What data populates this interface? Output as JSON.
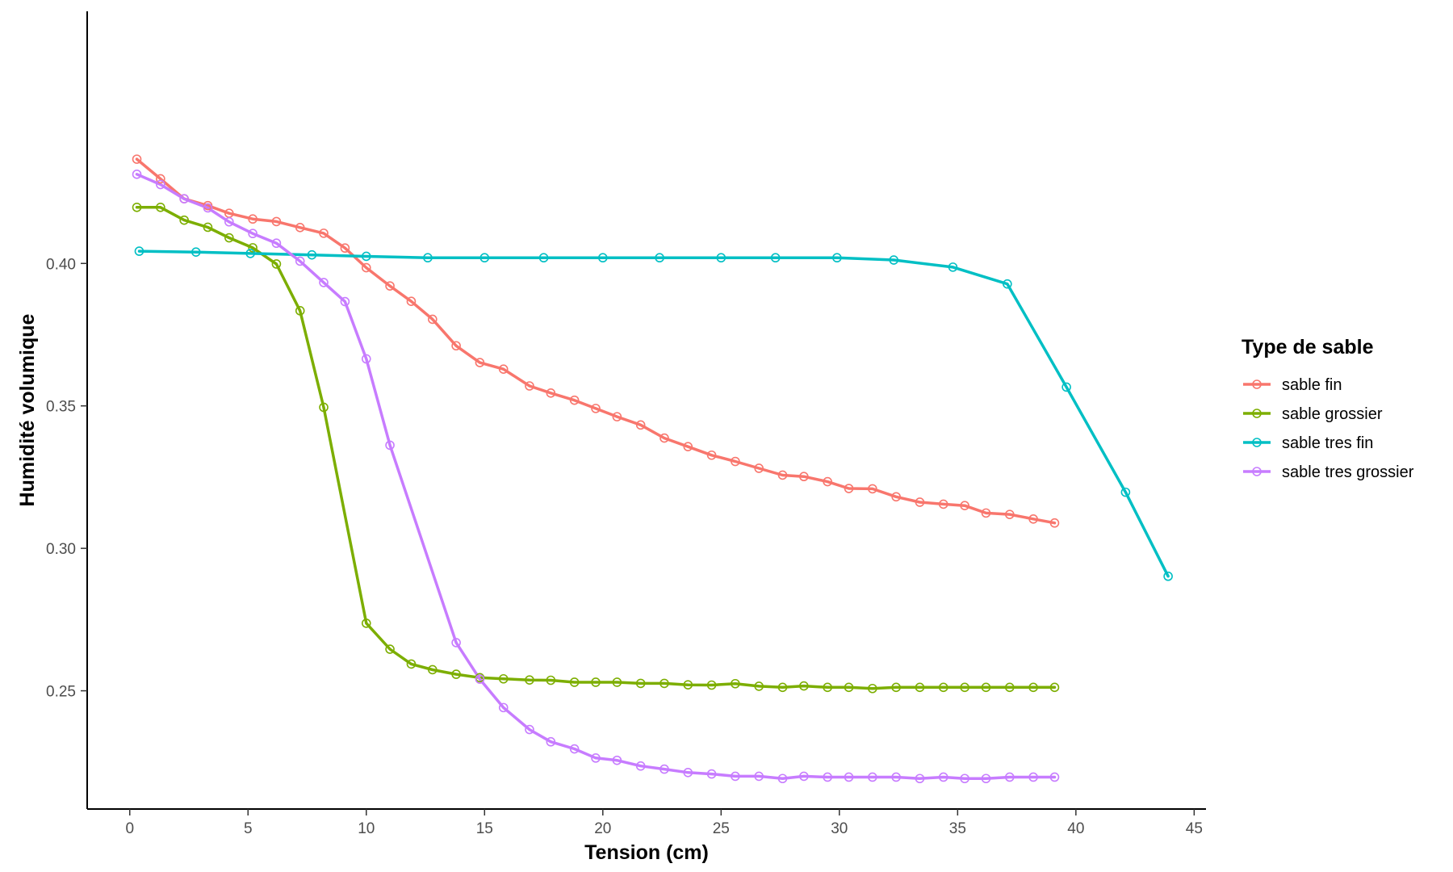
{
  "chart_data": {
    "type": "line",
    "title": "",
    "xlabel": "Tension (cm)",
    "ylabel": "Humidité volumique",
    "xlim": [
      -1.8,
      45.5
    ],
    "ylim": [
      0.2085,
      0.4885
    ],
    "x_ticks": [
      0,
      5,
      10,
      15,
      20,
      25,
      30,
      35,
      40,
      45
    ],
    "y_ticks": [
      0.25,
      0.3,
      0.35,
      0.4
    ],
    "x_tick_labels": [
      "0",
      "5",
      "10",
      "15",
      "20",
      "25",
      "30",
      "35",
      "40",
      "45"
    ],
    "y_tick_labels": [
      "0.25",
      "0.30",
      "0.35",
      "0.40"
    ],
    "grid": false,
    "legend": {
      "title": "Type de sable",
      "position": "right"
    },
    "series": [
      {
        "name": "sable fin",
        "color": "#F8766D",
        "x": [
          0.3,
          1.3,
          2.3,
          3.3,
          4.2,
          5.2,
          6.2,
          7.2,
          8.2,
          9.1,
          10.0,
          11.0,
          11.9,
          12.8,
          13.8,
          14.8,
          15.8,
          16.9,
          17.8,
          18.8,
          19.7,
          20.6,
          21.6,
          22.6,
          23.6,
          24.6,
          25.6,
          26.6,
          27.6,
          28.5,
          29.5,
          30.4,
          31.4,
          32.4,
          33.4,
          34.4,
          35.3,
          36.2,
          37.2,
          38.2,
          39.1
        ],
        "y": [
          0.4366,
          0.4297,
          0.4227,
          0.4203,
          0.4176,
          0.4156,
          0.4147,
          0.4126,
          0.4106,
          0.4054,
          0.3985,
          0.3921,
          0.3867,
          0.3804,
          0.3711,
          0.3652,
          0.3629,
          0.357,
          0.3545,
          0.352,
          0.3491,
          0.3462,
          0.3433,
          0.3387,
          0.3357,
          0.3327,
          0.3305,
          0.3281,
          0.3257,
          0.3252,
          0.3234,
          0.321,
          0.3209,
          0.3181,
          0.3162,
          0.3155,
          0.315,
          0.3124,
          0.3119,
          0.3103,
          0.3089
        ]
      },
      {
        "name": "sable grossier",
        "color": "#7CAE00",
        "x": [
          0.3,
          1.3,
          2.3,
          3.3,
          4.2,
          5.2,
          6.2,
          7.2,
          8.2,
          10.0,
          11.0,
          11.9,
          12.8,
          13.8,
          14.8,
          15.8,
          16.9,
          17.8,
          18.8,
          19.7,
          20.6,
          21.6,
          22.6,
          23.6,
          24.6,
          25.6,
          26.6,
          27.6,
          28.5,
          29.5,
          30.4,
          31.4,
          32.4,
          33.4,
          34.4,
          35.3,
          36.2,
          37.2,
          38.2,
          39.1
        ],
        "y": [
          0.4197,
          0.4197,
          0.4152,
          0.4127,
          0.409,
          0.4055,
          0.3998,
          0.3834,
          0.3495,
          0.2737,
          0.2646,
          0.2594,
          0.2574,
          0.2558,
          0.2546,
          0.2542,
          0.2538,
          0.2537,
          0.253,
          0.253,
          0.253,
          0.2526,
          0.2526,
          0.2521,
          0.252,
          0.2525,
          0.2516,
          0.2512,
          0.2517,
          0.2512,
          0.2512,
          0.2508,
          0.2512,
          0.2512,
          0.2512,
          0.2512,
          0.2512,
          0.2512,
          0.2512,
          0.2512
        ]
      },
      {
        "name": "sable tres fin",
        "color": "#00BFC4",
        "x": [
          0.4,
          2.8,
          5.1,
          7.7,
          10.0,
          12.6,
          15.0,
          17.5,
          20.0,
          22.4,
          25.0,
          27.3,
          29.9,
          32.3,
          34.8,
          37.1,
          39.6,
          42.1,
          43.9
        ],
        "y": [
          0.4043,
          0.404,
          0.4035,
          0.403,
          0.4025,
          0.402,
          0.402,
          0.402,
          0.402,
          0.402,
          0.402,
          0.402,
          0.402,
          0.4012,
          0.3987,
          0.3928,
          0.3566,
          0.3197,
          0.2902
        ]
      },
      {
        "name": "sable tres grossier",
        "color": "#C77CFF",
        "x": [
          0.3,
          1.3,
          2.3,
          3.3,
          4.2,
          5.2,
          6.2,
          7.2,
          8.2,
          9.1,
          10.0,
          11.0,
          13.8,
          14.8,
          15.8,
          16.9,
          17.8,
          18.8,
          19.7,
          20.6,
          21.6,
          22.6,
          23.6,
          24.6,
          25.6,
          26.6,
          27.6,
          28.5,
          29.5,
          30.4,
          31.4,
          32.4,
          33.4,
          34.4,
          35.3,
          36.2,
          37.2,
          38.2,
          39.1
        ],
        "y": [
          0.4313,
          0.4277,
          0.4227,
          0.4195,
          0.4146,
          0.4105,
          0.4071,
          0.4008,
          0.3933,
          0.3866,
          0.3665,
          0.3362,
          0.2669,
          0.2541,
          0.2441,
          0.2364,
          0.2321,
          0.2296,
          0.2264,
          0.2256,
          0.2236,
          0.2225,
          0.2213,
          0.2208,
          0.22,
          0.22,
          0.2192,
          0.22,
          0.2197,
          0.2197,
          0.2197,
          0.2197,
          0.2192,
          0.2197,
          0.2192,
          0.2192,
          0.2197,
          0.2197,
          0.2197
        ]
      }
    ]
  }
}
